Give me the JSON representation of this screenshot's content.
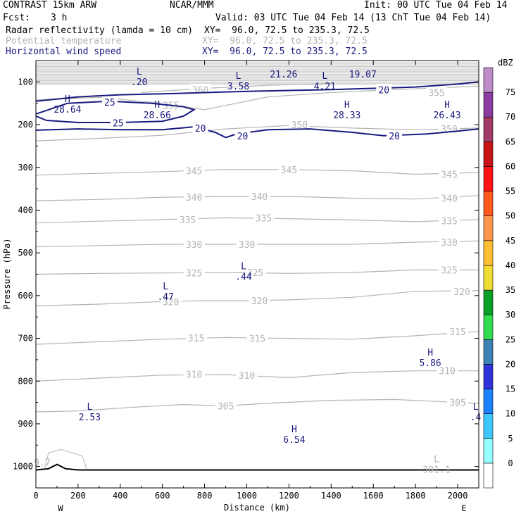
{
  "header": {
    "model": "CONTRAST 15km ARW",
    "org": "NCAR/MMM",
    "init": "Init: 00 UTC Tue 04 Feb 14",
    "fcst_label": "Fcst:",
    "fcst_value": "3 h",
    "valid": "Valid: 03 UTC Tue 04 Feb 14 (13 ChT Tue 04 Feb 14)",
    "fields": [
      {
        "name": "Radar reflectivity (lamda = 10 cm)",
        "xy": "XY=  96.0, 72.5 to 235.3, 72.5",
        "color": "#000000"
      },
      {
        "name": "Potential temperature",
        "xy": "XY=  96.0, 72.5 to 235.3, 72.5",
        "color": "#b4b4b4"
      },
      {
        "name": "Horizontal wind speed",
        "xy": "XY=  96.0, 72.5 to 235.3, 72.5",
        "color": "#1a1a80"
      }
    ]
  },
  "chart_data": {
    "type": "contour cross-section",
    "xlabel": "Distance (km)",
    "ylabel": "Pressure (hPa)",
    "xlim": [
      0,
      2100
    ],
    "ylim": [
      1050,
      50
    ],
    "x_ticks": [
      0,
      200,
      400,
      600,
      800,
      1000,
      1200,
      1400,
      1600,
      1800,
      2000
    ],
    "y_ticks": [
      100,
      200,
      300,
      400,
      500,
      600,
      700,
      800,
      900,
      1000
    ],
    "end_labels": {
      "left": "W",
      "right": "E"
    },
    "colorbar": {
      "unit": "dBZ",
      "levels": [
        0,
        5,
        10,
        15,
        20,
        25,
        30,
        35,
        40,
        45,
        50,
        55,
        60,
        65,
        70,
        75
      ],
      "colors": [
        "#ffffff",
        "#96ffff",
        "#3cc8ff",
        "#1e82ff",
        "#3232dc",
        "#3c82b4",
        "#32dc50",
        "#0aa028",
        "#f0dc32",
        "#ffbe32",
        "#ff9650",
        "#ff5a1e",
        "#ff1414",
        "#c81414",
        "#a03c64",
        "#8c3ca0",
        "#be8cc8"
      ]
    },
    "theta_contours": [
      {
        "value": 305,
        "points": [
          [
            0,
            872
          ],
          [
            200,
            870
          ],
          [
            500,
            860
          ],
          [
            700,
            855
          ],
          [
            900,
            858
          ],
          [
            1100,
            852
          ],
          [
            1400,
            845
          ],
          [
            1700,
            843
          ],
          [
            2000,
            850
          ],
          [
            2100,
            852
          ]
        ],
        "labels": [
          [
            900,
            858
          ],
          [
            2000,
            850
          ]
        ]
      },
      {
        "value": 310,
        "points": [
          [
            0,
            800
          ],
          [
            300,
            793
          ],
          [
            600,
            786
          ],
          [
            900,
            785
          ],
          [
            1200,
            792
          ],
          [
            1500,
            780
          ],
          [
            1800,
            776
          ],
          [
            2100,
            776
          ]
        ],
        "labels": [
          [
            750,
            784
          ],
          [
            1000,
            786
          ],
          [
            1950,
            776
          ]
        ]
      },
      {
        "value": 315,
        "points": [
          [
            0,
            714
          ],
          [
            300,
            708
          ],
          [
            600,
            702
          ],
          [
            900,
            698
          ],
          [
            1200,
            700
          ],
          [
            1500,
            702
          ],
          [
            1800,
            694
          ],
          [
            2100,
            684
          ]
        ],
        "labels": [
          [
            760,
            699
          ],
          [
            1050,
            700
          ],
          [
            2000,
            684
          ]
        ]
      },
      {
        "value": 320,
        "points": [
          [
            0,
            624
          ],
          [
            300,
            620
          ],
          [
            600,
            614
          ],
          [
            800,
            612
          ],
          [
            1000,
            612
          ],
          [
            1200,
            610
          ],
          [
            1500,
            604
          ],
          [
            1800,
            590
          ],
          [
            2100,
            588
          ]
        ],
        "labels": [
          [
            640,
            614
          ],
          [
            1060,
            612
          ],
          [
            2020,
            590
          ]
        ]
      },
      {
        "value": 325,
        "points": [
          [
            0,
            550
          ],
          [
            300,
            548
          ],
          [
            600,
            547
          ],
          [
            900,
            546
          ],
          [
            1200,
            548
          ],
          [
            1500,
            546
          ],
          [
            1800,
            540
          ],
          [
            2100,
            540
          ]
        ],
        "labels": [
          [
            750,
            547
          ],
          [
            1040,
            546
          ],
          [
            1960,
            540
          ]
        ]
      },
      {
        "value": 330,
        "points": [
          [
            0,
            486
          ],
          [
            300,
            483
          ],
          [
            600,
            480
          ],
          [
            900,
            480
          ],
          [
            1200,
            480
          ],
          [
            1500,
            480
          ],
          [
            1800,
            475
          ],
          [
            2100,
            472
          ]
        ],
        "labels": [
          [
            750,
            480
          ],
          [
            1000,
            480
          ],
          [
            1960,
            475
          ]
        ]
      },
      {
        "value": 335,
        "points": [
          [
            0,
            430
          ],
          [
            300,
            426
          ],
          [
            600,
            422
          ],
          [
            900,
            418
          ],
          [
            1200,
            420
          ],
          [
            1500,
            423
          ],
          [
            1800,
            427
          ],
          [
            2100,
            422
          ]
        ],
        "labels": [
          [
            720,
            422
          ],
          [
            1080,
            418
          ],
          [
            1960,
            425
          ]
        ]
      },
      {
        "value": 340,
        "points": [
          [
            0,
            378
          ],
          [
            300,
            375
          ],
          [
            600,
            370
          ],
          [
            900,
            368
          ],
          [
            1200,
            368
          ],
          [
            1500,
            372
          ],
          [
            1800,
            374
          ],
          [
            2100,
            366
          ]
        ],
        "labels": [
          [
            750,
            370
          ],
          [
            1060,
            368
          ],
          [
            1960,
            372
          ]
        ]
      },
      {
        "value": 345,
        "points": [
          [
            0,
            318
          ],
          [
            300,
            314
          ],
          [
            600,
            310
          ],
          [
            900,
            305
          ],
          [
            1200,
            305
          ],
          [
            1500,
            308
          ],
          [
            1800,
            316
          ],
          [
            2100,
            312
          ]
        ],
        "labels": [
          [
            750,
            308
          ],
          [
            1200,
            305
          ],
          [
            1960,
            316
          ]
        ]
      },
      {
        "value": 350,
        "points": [
          [
            0,
            238
          ],
          [
            300,
            232
          ],
          [
            600,
            225
          ],
          [
            900,
            210
          ],
          [
            1200,
            202
          ],
          [
            1500,
            208
          ],
          [
            1800,
            212
          ],
          [
            2100,
            208
          ]
        ],
        "labels": [
          [
            1250,
            200
          ],
          [
            1960,
            210
          ]
        ]
      },
      {
        "value": 355,
        "points": [
          [
            0,
            142
          ],
          [
            300,
            136
          ],
          [
            600,
            150
          ],
          [
            800,
            165
          ],
          [
            1100,
            135
          ],
          [
            1400,
            125
          ],
          [
            1700,
            118
          ],
          [
            2100,
            110
          ]
        ],
        "labels": [
          [
            640,
            155
          ],
          [
            1900,
            125
          ]
        ]
      },
      {
        "value": 360,
        "points": [
          [
            500,
            125
          ],
          [
            800,
            115
          ],
          [
            1100,
            108
          ],
          [
            1400,
            104
          ]
        ],
        "labels": [
          [
            780,
            118
          ]
        ]
      }
    ],
    "wind_contours": [
      {
        "value": 20,
        "points": [
          [
            0,
            213
          ],
          [
            200,
            210
          ],
          [
            400,
            212
          ],
          [
            600,
            212
          ],
          [
            750,
            205
          ],
          [
            850,
            218
          ],
          [
            900,
            230
          ],
          [
            950,
            222
          ],
          [
            1100,
            212
          ],
          [
            1300,
            210
          ],
          [
            1500,
            218
          ],
          [
            1650,
            226
          ],
          [
            1850,
            222
          ],
          [
            2000,
            215
          ],
          [
            2100,
            210
          ]
        ],
        "labels": [
          [
            780,
            208
          ],
          [
            980,
            226
          ],
          [
            1700,
            226
          ]
        ]
      },
      {
        "value": 25,
        "points": [
          [
            0,
            175
          ],
          [
            150,
            150
          ],
          [
            350,
            145
          ],
          [
            550,
            150
          ],
          [
            700,
            158
          ],
          [
            750,
            165
          ],
          [
            700,
            180
          ],
          [
            600,
            192
          ],
          [
            400,
            195
          ],
          [
            200,
            195
          ],
          [
            50,
            190
          ],
          [
            0,
            180
          ]
        ],
        "labels": [
          [
            350,
            147
          ],
          [
            390,
            196
          ]
        ]
      },
      {
        "value": 20,
        "points": [
          [
            0,
            145
          ],
          [
            200,
            135
          ],
          [
            400,
            130
          ],
          [
            600,
            128
          ],
          [
            800,
            125
          ],
          [
            1000,
            122
          ],
          [
            1200,
            120
          ],
          [
            1400,
            118
          ],
          [
            1600,
            115
          ],
          [
            1800,
            112
          ],
          [
            2000,
            105
          ],
          [
            2100,
            100
          ]
        ],
        "labels": [
          [
            1650,
            118
          ]
        ]
      }
    ],
    "extrema": [
      {
        "type": "L",
        "value": ".20",
        "x": 490,
        "y": 98
      },
      {
        "type": "L",
        "value": "3.58",
        "x": 960,
        "y": 108
      },
      {
        "type": "L",
        "value": "4.21",
        "x": 1370,
        "y": 108
      },
      {
        "type": "",
        "value": "21.26",
        "x": 1175,
        "y": 80
      },
      {
        "type": "",
        "value": "19.07",
        "x": 1550,
        "y": 80
      },
      {
        "type": "H",
        "value": "28.64",
        "x": 150,
        "y": 162
      },
      {
        "type": "H",
        "value": "28.66",
        "x": 575,
        "y": 175
      },
      {
        "type": "H",
        "value": "28.33",
        "x": 1475,
        "y": 175
      },
      {
        "type": "H",
        "value": "26.43",
        "x": 1950,
        "y": 175
      },
      {
        "type": "L",
        "value": ".47",
        "x": 615,
        "y": 600
      },
      {
        "type": "L",
        "value": ".44",
        "x": 985,
        "y": 553
      },
      {
        "type": "H",
        "value": "5.86",
        "x": 1870,
        "y": 755
      },
      {
        "type": "L",
        "value": "2.53",
        "x": 255,
        "y": 882
      },
      {
        "type": "H",
        "value": "6.54",
        "x": 1225,
        "y": 935
      },
      {
        "type": "L",
        "value": ".4",
        "x": 2085,
        "y": 882
      },
      {
        "type": "L",
        "value": "301.1",
        "x": 1900,
        "y": 1005
      }
    ],
    "stray_labels": [
      {
        "value": "9.7",
        "x": 30,
        "y": 990
      }
    ]
  }
}
